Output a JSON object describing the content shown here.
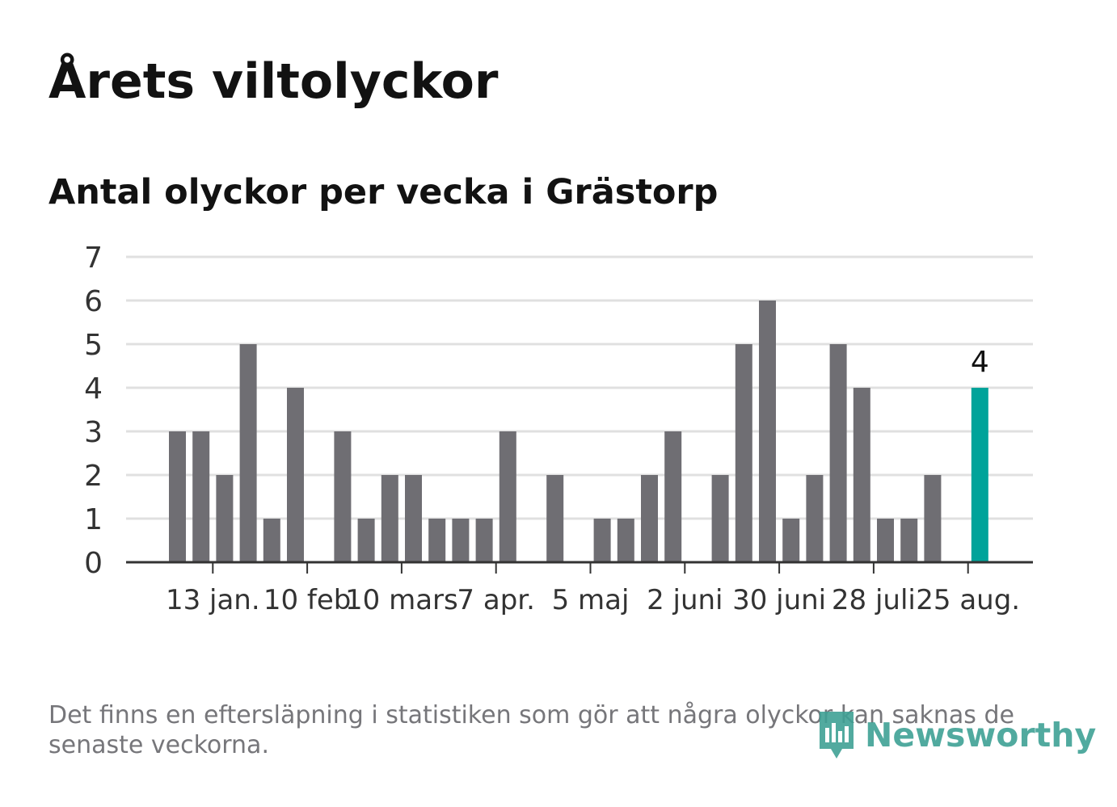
{
  "title": "Årets viltolyckor",
  "subtitle": "Antal olyckor per vecka i Grästorp",
  "footnote": "Det finns en eftersläpning i statistiken som gör att några olyckor kan saknas de senaste veckorna.",
  "brand": {
    "name": "Newsworthy",
    "icon": "newsworthy-logo-icon",
    "color": "#3fa195"
  },
  "colors": {
    "bar": "#6f6e73",
    "highlight": "#00a39a",
    "grid": "#e0e0e0",
    "axis": "#333333",
    "text": "#333333"
  },
  "chart_data": {
    "type": "bar",
    "title": "Antal olyckor per vecka i Grästorp",
    "xlabel": "",
    "ylabel": "",
    "ylim": [
      0,
      7
    ],
    "yticks": [
      0,
      1,
      2,
      3,
      4,
      5,
      6,
      7
    ],
    "grid": true,
    "series": [
      {
        "values": [
          3,
          3,
          2,
          5,
          1,
          4,
          0,
          3,
          1,
          2,
          2,
          1,
          1,
          1,
          3,
          0,
          2,
          0,
          1,
          1,
          2,
          3,
          0,
          2,
          5,
          6,
          1,
          2,
          5,
          4,
          1,
          1,
          2,
          0,
          4
        ]
      }
    ],
    "highlight_index": 34,
    "highlight_label": "4",
    "xtick_labels": [
      {
        "label": "13 jan.",
        "after_bar": 1
      },
      {
        "label": "10 feb",
        "after_bar": 5
      },
      {
        "label": "10 mars",
        "after_bar": 9
      },
      {
        "label": "7 apr.",
        "after_bar": 13
      },
      {
        "label": "5 maj",
        "after_bar": 17
      },
      {
        "label": "2 juni",
        "after_bar": 21
      },
      {
        "label": "30 juni",
        "after_bar": 25
      },
      {
        "label": "28 juli",
        "after_bar": 29
      },
      {
        "label": "25 aug.",
        "after_bar": 33
      }
    ]
  }
}
